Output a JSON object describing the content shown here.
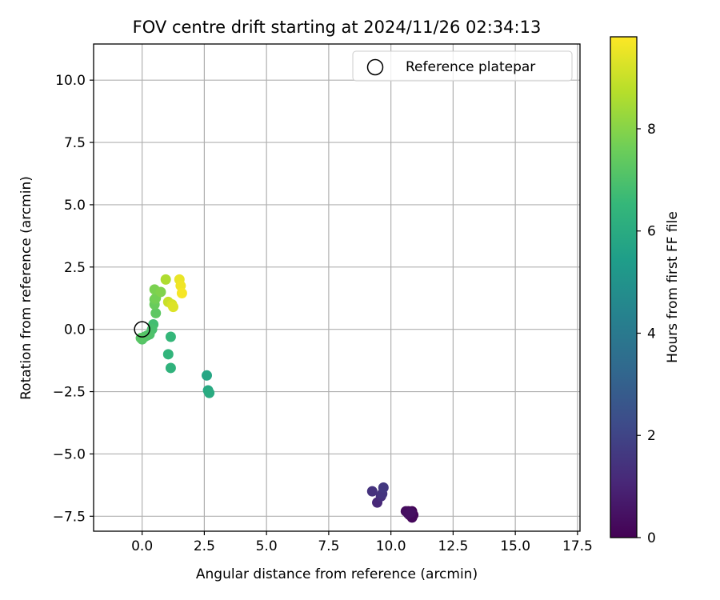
{
  "chart_data": {
    "type": "scatter",
    "title": "FOV centre drift starting at 2024/11/26 02:34:13",
    "xlabel": "Angular distance from reference (arcmin)",
    "ylabel": "Rotation from reference (arcmin)",
    "xlim": [
      -1.95,
      17.6
    ],
    "ylim": [
      -8.1,
      11.45
    ],
    "xticks": [
      0.0,
      2.5,
      5.0,
      7.5,
      10.0,
      12.5,
      15.0,
      17.5
    ],
    "xtick_labels": [
      "0.0",
      "2.5",
      "5.0",
      "7.5",
      "10.0",
      "12.5",
      "15.0",
      "17.5"
    ],
    "yticks": [
      -7.5,
      -5.0,
      -2.5,
      0.0,
      2.5,
      5.0,
      7.5,
      10.0
    ],
    "ytick_labels": [
      "−7.5",
      "−5.0",
      "−2.5",
      "0.0",
      "2.5",
      "5.0",
      "7.5",
      "10.0"
    ],
    "grid": true,
    "legend": {
      "placement": "upper right",
      "entries": [
        "Reference platepar"
      ]
    },
    "reference_point": {
      "x": 0.0,
      "y": 0.0,
      "label": "Reference platepar",
      "marker": "open-circle"
    },
    "colorbar": {
      "label": "Hours from first FF file",
      "colormap": "viridis",
      "range": [
        0,
        9.8
      ],
      "ticks": [
        0,
        2,
        4,
        6,
        8
      ],
      "tick_labels": [
        "0",
        "2",
        "4",
        "6",
        "8"
      ],
      "stops": [
        "#440154",
        "#482878",
        "#3e4a89",
        "#31688e",
        "#26828e",
        "#1f9e89",
        "#35b779",
        "#6ece58",
        "#b5de2b",
        "#fde725"
      ]
    },
    "series": [
      {
        "points": [
          {
            "x": 10.7,
            "y": -7.3,
            "hours": 0.0
          },
          {
            "x": 10.85,
            "y": -7.3,
            "hours": 0.05
          },
          {
            "x": 10.75,
            "y": -7.45,
            "hours": 0.1
          },
          {
            "x": 10.9,
            "y": -7.45,
            "hours": 0.15
          },
          {
            "x": 10.85,
            "y": -7.55,
            "hours": 0.2
          },
          {
            "x": 10.6,
            "y": -7.3,
            "hours": 0.3
          },
          {
            "x": 10.7,
            "y": -7.4,
            "hours": 0.35
          },
          {
            "x": 10.8,
            "y": -7.35,
            "hours": 0.4
          },
          {
            "x": 9.45,
            "y": -6.95,
            "hours": 1.1
          },
          {
            "x": 9.6,
            "y": -6.7,
            "hours": 1.3
          },
          {
            "x": 9.25,
            "y": -6.5,
            "hours": 1.4
          },
          {
            "x": 9.65,
            "y": -6.6,
            "hours": 1.5
          },
          {
            "x": 9.7,
            "y": -6.35,
            "hours": 1.6
          },
          {
            "x": 2.6,
            "y": -1.85,
            "hours": 5.8
          },
          {
            "x": 2.65,
            "y": -2.45,
            "hours": 5.9
          },
          {
            "x": 2.7,
            "y": -2.55,
            "hours": 6.0
          },
          {
            "x": 1.15,
            "y": -1.55,
            "hours": 6.3
          },
          {
            "x": 1.05,
            "y": -1.0,
            "hours": 6.4
          },
          {
            "x": 1.15,
            "y": -0.3,
            "hours": 6.5
          },
          {
            "x": 0.45,
            "y": 0.2,
            "hours": 6.8
          },
          {
            "x": 0.4,
            "y": 0.0,
            "hours": 6.9
          },
          {
            "x": 0.3,
            "y": -0.2,
            "hours": 7.0
          },
          {
            "x": 0.2,
            "y": -0.25,
            "hours": 7.05
          },
          {
            "x": 0.1,
            "y": -0.3,
            "hours": 7.1
          },
          {
            "x": 0.0,
            "y": -0.4,
            "hours": 7.15
          },
          {
            "x": -0.05,
            "y": -0.35,
            "hours": 7.2
          },
          {
            "x": 0.55,
            "y": 0.65,
            "hours": 7.3
          },
          {
            "x": 0.5,
            "y": 1.0,
            "hours": 7.5
          },
          {
            "x": 0.5,
            "y": 1.2,
            "hours": 7.6
          },
          {
            "x": 0.55,
            "y": 1.25,
            "hours": 7.7
          },
          {
            "x": 0.5,
            "y": 1.6,
            "hours": 7.8
          },
          {
            "x": 0.75,
            "y": 1.5,
            "hours": 7.9
          },
          {
            "x": 0.95,
            "y": 2.0,
            "hours": 8.6
          },
          {
            "x": 1.05,
            "y": 1.1,
            "hours": 9.0
          },
          {
            "x": 1.2,
            "y": 1.0,
            "hours": 9.2
          },
          {
            "x": 1.25,
            "y": 0.9,
            "hours": 9.3
          },
          {
            "x": 1.5,
            "y": 2.0,
            "hours": 9.5
          },
          {
            "x": 1.55,
            "y": 1.75,
            "hours": 9.6
          },
          {
            "x": 1.6,
            "y": 1.45,
            "hours": 9.7
          }
        ]
      }
    ]
  }
}
